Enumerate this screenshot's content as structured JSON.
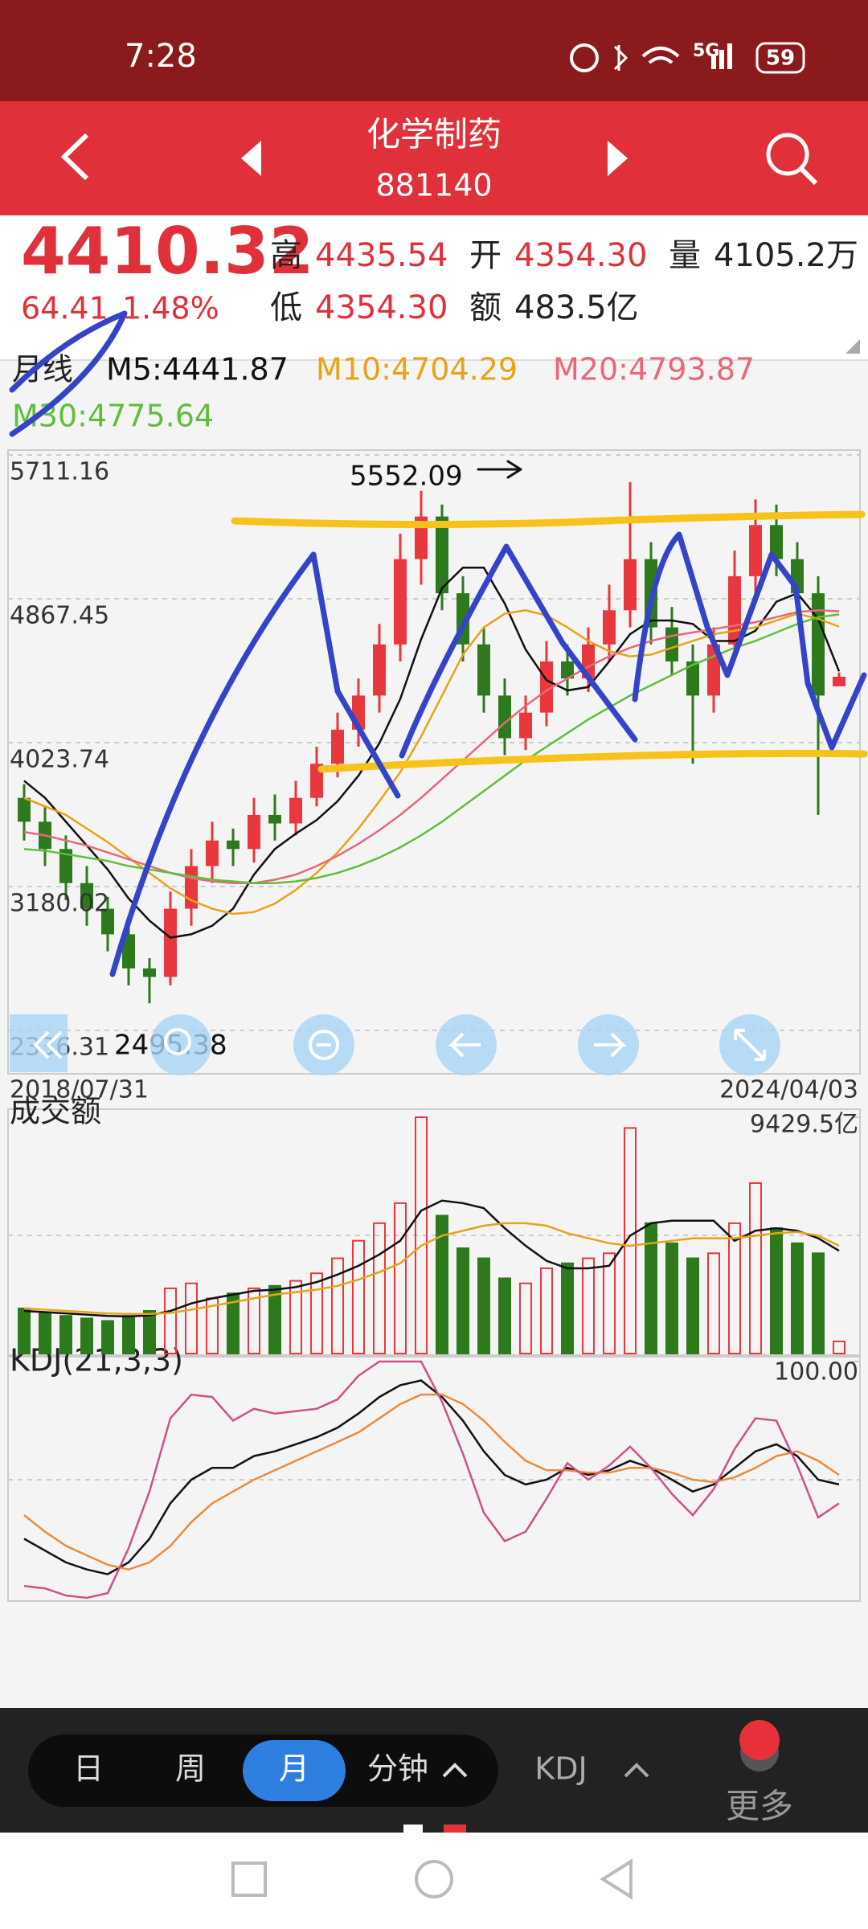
{
  "status_bar": {
    "time": "7:28",
    "network": "5G",
    "battery": "59"
  },
  "header": {
    "title": "化学制药",
    "code": "881140"
  },
  "quote": {
    "price": "4410.32",
    "change": "64.41",
    "change_pct": "1.48%",
    "high_label": "高",
    "high": "4435.54",
    "open_label": "开",
    "open": "4354.30",
    "volume_label": "量",
    "volume": "4105.2万",
    "low_label": "低",
    "low": "4354.30",
    "amount_label": "额",
    "amount": "483.5亿"
  },
  "chart_data": [
    {
      "type": "candlestick",
      "period": "月线",
      "categories": [
        "2018/07/31",
        null,
        null,
        null,
        null,
        null,
        null,
        null,
        null,
        null,
        null,
        null,
        null,
        null,
        null,
        null,
        null,
        null,
        null,
        null,
        null,
        null,
        null,
        null,
        null,
        null,
        null,
        null,
        null,
        null,
        null,
        null,
        null,
        null,
        null,
        null,
        null,
        null,
        null,
        "2024/04/03"
      ],
      "open": [
        3700,
        3560,
        3400,
        3200,
        3050,
        2900,
        2700,
        2650,
        3050,
        3300,
        3450,
        3400,
        3600,
        3550,
        3700,
        3900,
        4100,
        4300,
        4600,
        5100,
        5350,
        4900,
        4600,
        4300,
        4050,
        4200,
        4500,
        4400,
        4600,
        4800,
        5100,
        4700,
        4500,
        4300,
        4600,
        5000,
        5300,
        5100,
        4900,
        4354.3
      ],
      "high": [
        3780,
        3650,
        3480,
        3300,
        3120,
        2980,
        2760,
        3150,
        3400,
        3560,
        3520,
        3700,
        3720,
        3800,
        4000,
        4200,
        4400,
        4720,
        5250,
        5500,
        5420,
        5000,
        4700,
        4400,
        4300,
        4620,
        4600,
        4700,
        4950,
        5552.09,
        5200,
        4820,
        4600,
        4700,
        5150,
        5450,
        5420,
        5200,
        5000,
        4435.54
      ],
      "low": [
        3450,
        3300,
        3100,
        2950,
        2800,
        2600,
        2495.38,
        2600,
        2950,
        3200,
        3300,
        3320,
        3450,
        3480,
        3650,
        3820,
        4000,
        4200,
        4500,
        4950,
        4800,
        4500,
        4200,
        3950,
        3980,
        4120,
        4300,
        4320,
        4500,
        4700,
        4600,
        4420,
        3900,
        4200,
        4520,
        4900,
        5000,
        4800,
        3600,
        4354.3
      ],
      "close": [
        3560,
        3400,
        3200,
        3050,
        2900,
        2700,
        2650,
        3050,
        3300,
        3450,
        3400,
        3600,
        3550,
        3700,
        3900,
        4100,
        4300,
        4600,
        5100,
        5350,
        4900,
        4600,
        4300,
        4050,
        4200,
        4500,
        4400,
        4600,
        4800,
        5100,
        4700,
        4500,
        4300,
        4600,
        5000,
        5300,
        5100,
        4900,
        4300,
        4410.32
      ],
      "up_color": "#e8383d",
      "down_color": "#2d7a1c",
      "series": [
        {
          "name": "M5:4441.87",
          "color": "#111111",
          "values": [
            3800,
            3700,
            3560,
            3420,
            3280,
            3110,
            2980,
            2880,
            2900,
            2950,
            3050,
            3250,
            3400,
            3490,
            3570,
            3680,
            3830,
            4020,
            4280,
            4630,
            4930,
            5050,
            5050,
            4840,
            4570,
            4390,
            4330,
            4350,
            4500,
            4660,
            4740,
            4740,
            4720,
            4620,
            4620,
            4680,
            4850,
            4900,
            4750,
            4441.87
          ]
        },
        {
          "name": "M10:4704.29",
          "color": "#e8a317",
          "values": [
            3700,
            3650,
            3600,
            3520,
            3440,
            3350,
            3260,
            3170,
            3100,
            3050,
            3020,
            3030,
            3080,
            3160,
            3260,
            3380,
            3520,
            3680,
            3850,
            4060,
            4300,
            4540,
            4700,
            4780,
            4800,
            4770,
            4700,
            4620,
            4560,
            4530,
            4540,
            4580,
            4620,
            4660,
            4680,
            4700,
            4740,
            4780,
            4750,
            4704.29
          ]
        },
        {
          "name": "M20:4793.87",
          "color": "#e8687a",
          "values": [
            3500,
            3480,
            3450,
            3420,
            3380,
            3340,
            3300,
            3260,
            3230,
            3210,
            3200,
            3200,
            3220,
            3250,
            3300,
            3360,
            3430,
            3510,
            3600,
            3700,
            3810,
            3920,
            4030,
            4140,
            4240,
            4330,
            4400,
            4470,
            4530,
            4580,
            4620,
            4650,
            4670,
            4690,
            4710,
            4730,
            4760,
            4790,
            4800,
            4793.87
          ]
        },
        {
          "name": "M30:4775.64",
          "color": "#5fbf3c",
          "values": [
            3400,
            3390,
            3370,
            3350,
            3330,
            3300,
            3280,
            3260,
            3240,
            3220,
            3210,
            3200,
            3200,
            3210,
            3230,
            3260,
            3300,
            3350,
            3410,
            3480,
            3560,
            3650,
            3740,
            3830,
            3920,
            4000,
            4080,
            4160,
            4230,
            4300,
            4360,
            4420,
            4480,
            4530,
            4580,
            4620,
            4670,
            4720,
            4760,
            4775.64
          ]
        }
      ],
      "ylim": [
        2336.31,
        5711.16
      ],
      "yticks": [
        5711.16,
        4867.45,
        4023.74,
        3180.02,
        2336.31
      ],
      "grid": true
    },
    {
      "type": "bar",
      "title": "成交额",
      "values": [
        1800,
        1600,
        1500,
        1400,
        1300,
        1500,
        1700,
        2600,
        2800,
        2200,
        2400,
        2600,
        2700,
        2900,
        3200,
        3800,
        4500,
        5200,
        6000,
        9429.5,
        5500,
        4200,
        3800,
        3000,
        2800,
        3400,
        3600,
        3800,
        4000,
        9000,
        5200,
        4400,
        3800,
        4000,
        5200,
        6800,
        5000,
        4400,
        4000,
        483.5
      ],
      "series": [
        {
          "color": "#111111",
          "values": [
            1700,
            1650,
            1600,
            1550,
            1500,
            1480,
            1520,
            1700,
            2000,
            2200,
            2350,
            2500,
            2550,
            2650,
            2850,
            3150,
            3500,
            3950,
            4500,
            5700,
            6100,
            6000,
            5800,
            5000,
            4300,
            3700,
            3400,
            3400,
            3500,
            4700,
            5200,
            5300,
            5300,
            5300,
            4500,
            4900,
            5000,
            4900,
            4600,
            4100
          ]
        },
        {
          "color": "#e8a317",
          "values": [
            1800,
            1750,
            1700,
            1650,
            1600,
            1580,
            1580,
            1620,
            1750,
            1900,
            2050,
            2200,
            2350,
            2450,
            2550,
            2700,
            2950,
            3250,
            3600,
            4300,
            4700,
            4900,
            5100,
            5200,
            5200,
            5100,
            4800,
            4600,
            4400,
            4300,
            4400,
            4500,
            4600,
            4600,
            4600,
            4700,
            4800,
            4850,
            4700,
            4300
          ]
        }
      ],
      "ylim": [
        0,
        9429.5
      ],
      "yticks": [
        {
          "value": 9429.5,
          "label": "9429.5亿"
        }
      ]
    },
    {
      "type": "line",
      "title": "KDJ(21,3,3)",
      "series": [
        {
          "color": "#111111",
          "values": [
            25,
            20,
            15,
            12,
            10,
            15,
            25,
            40,
            50,
            55,
            55,
            60,
            62,
            65,
            68,
            72,
            78,
            85,
            90,
            92,
            85,
            75,
            62,
            52,
            48,
            50,
            55,
            52,
            54,
            58,
            55,
            50,
            45,
            48,
            55,
            62,
            65,
            60,
            50,
            48
          ]
        },
        {
          "color": "#ef8a3c",
          "values": [
            35,
            28,
            22,
            18,
            14,
            12,
            15,
            22,
            32,
            40,
            45,
            50,
            54,
            58,
            62,
            66,
            70,
            76,
            82,
            86,
            86,
            82,
            75,
            66,
            58,
            54,
            54,
            53,
            53,
            55,
            55,
            53,
            50,
            49,
            51,
            55,
            60,
            62,
            58,
            52
          ]
        },
        {
          "color": "#d0508a",
          "values": [
            5,
            4,
            1,
            0,
            2,
            21,
            45,
            76,
            86,
            85,
            75,
            80,
            78,
            79,
            80,
            84,
            94,
            100,
            100,
            100,
            83,
            61,
            36,
            24,
            28,
            42,
            57,
            50,
            56,
            64,
            55,
            44,
            35,
            46,
            63,
            76,
            75,
            56,
            34,
            40
          ]
        }
      ],
      "ylim": [
        0,
        100
      ],
      "yticks": [
        {
          "value": 100,
          "label": "100.00"
        }
      ]
    }
  ],
  "toolbar": {
    "tabs": [
      "日",
      "周",
      "月",
      "分钟"
    ],
    "indicator": "KDJ",
    "more": "更多"
  }
}
